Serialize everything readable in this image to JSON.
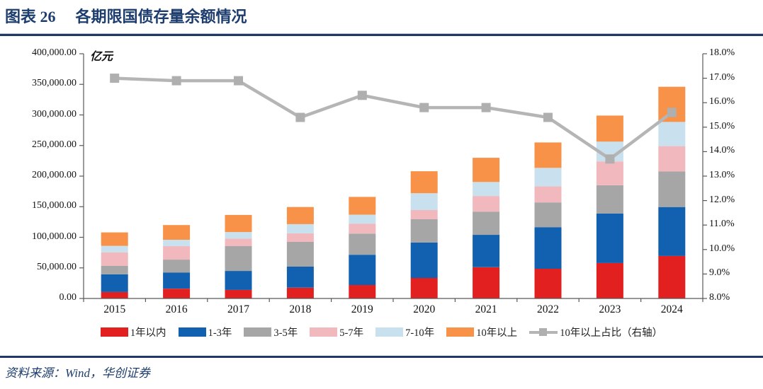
{
  "header": {
    "label": "图表 26",
    "title": "各期限国债存量余额情况"
  },
  "footer": {
    "source": "资料来源：Wind，华创证券"
  },
  "colors": {
    "accent": "#1F3864",
    "axis_line": "#595959",
    "line_series": "#B5B5B5",
    "line_marker": "#AFAFAF"
  },
  "chart_data": {
    "type": "bar",
    "subtype": "stacked-bars-with-right-axis-line",
    "title": "各期限国债存量余额情况",
    "unit_label": "亿元",
    "legend_position": "bottom",
    "grid": false,
    "categories": [
      "2015",
      "2016",
      "2017",
      "2018",
      "2019",
      "2020",
      "2021",
      "2022",
      "2023",
      "2024"
    ],
    "series": [
      {
        "name": "1年以内",
        "color": "#E1201F",
        "axis": "left",
        "values": [
          10500,
          16000,
          14000,
          17500,
          22000,
          33500,
          51000,
          48500,
          58000,
          69500
        ]
      },
      {
        "name": "1-3年",
        "color": "#1261B0",
        "axis": "left",
        "values": [
          29000,
          26500,
          31000,
          34500,
          49500,
          58000,
          53000,
          68000,
          81000,
          80000
        ]
      },
      {
        "name": "3-5年",
        "color": "#A6A6A6",
        "axis": "left",
        "values": [
          14000,
          21000,
          40500,
          40500,
          34500,
          38000,
          38000,
          40500,
          46000,
          58000
        ]
      },
      {
        "name": "5-7年",
        "color": "#F1B9BE",
        "axis": "left",
        "values": [
          22000,
          22000,
          12500,
          14000,
          16000,
          15000,
          25500,
          26500,
          39000,
          41500
        ]
      },
      {
        "name": "7-10年",
        "color": "#C9E1EE",
        "axis": "left",
        "values": [
          10500,
          10500,
          10500,
          15000,
          15000,
          27500,
          23000,
          30000,
          32500,
          39500
        ]
      },
      {
        "name": "10年以上",
        "color": "#F79248",
        "axis": "left",
        "values": [
          22000,
          24000,
          28000,
          28000,
          29000,
          36000,
          39500,
          41500,
          42500,
          57500
        ]
      }
    ],
    "line_series": {
      "name": "10年以上占比（右轴）",
      "color": "#B5B5B5",
      "marker_color": "#AFAFAF",
      "axis": "right",
      "values": [
        17.0,
        16.9,
        16.9,
        15.4,
        16.3,
        15.8,
        15.8,
        15.4,
        13.7,
        15.6
      ]
    },
    "left_axis": {
      "min": 0,
      "max": 400000,
      "step": 50000,
      "tick_labels": [
        "400,000.00",
        "350,000.00",
        "300,000.00",
        "250,000.00",
        "200,000.00",
        "150,000.00",
        "100,000.00",
        "50,000.00",
        "0.00"
      ]
    },
    "right_axis": {
      "min": 8,
      "max": 18,
      "step": 1,
      "tick_labels": [
        "18.0%",
        "17.0%",
        "16.0%",
        "15.0%",
        "14.0%",
        "13.0%",
        "12.0%",
        "11.0%",
        "10.0%",
        "9.0%",
        "8.0%"
      ]
    }
  }
}
